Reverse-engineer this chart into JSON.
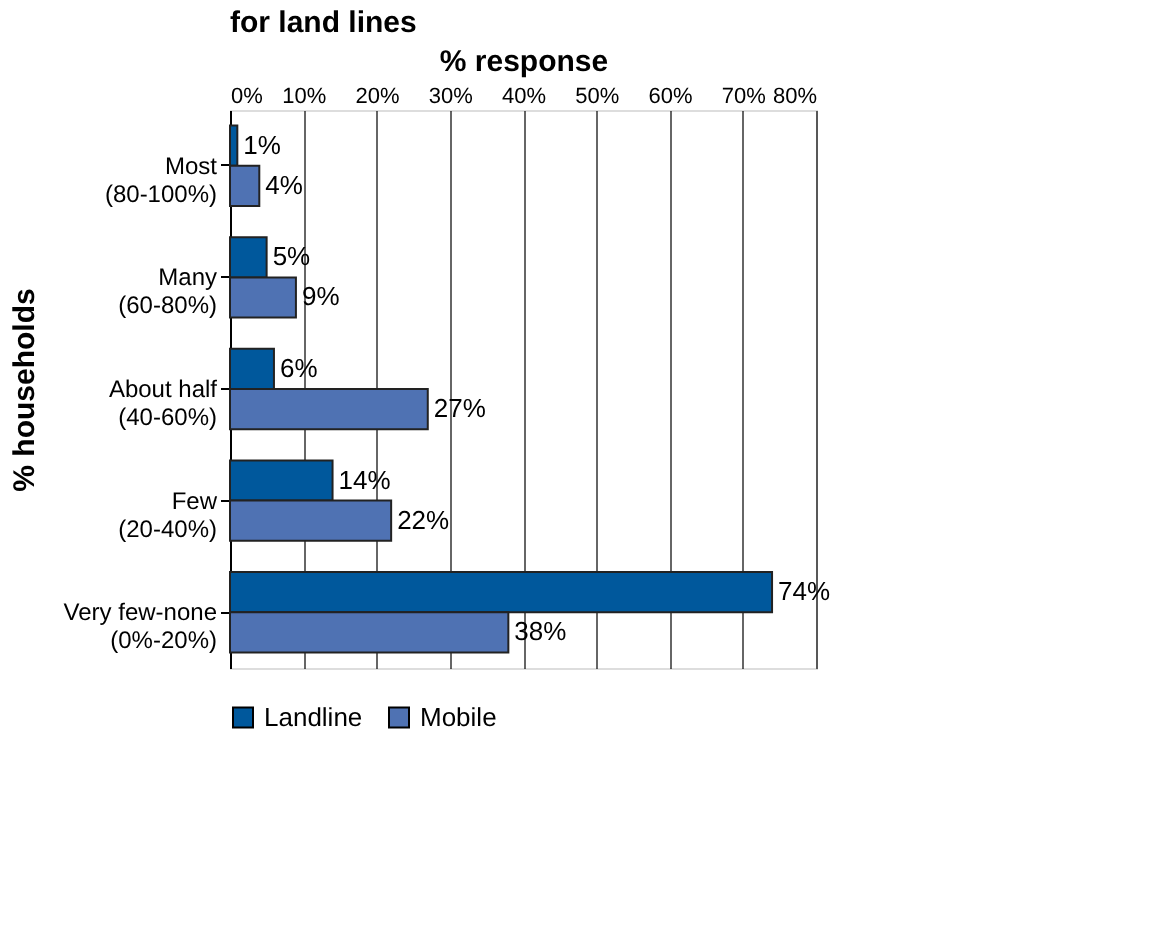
{
  "chart_data": {
    "type": "bar",
    "orientation": "horizontal",
    "title": "for land lines",
    "xlabel": "% response",
    "ylabel": "% households",
    "categories": [
      "Most\n(80-100%)",
      "Many\n(60-80%)",
      "About half\n(40-60%)",
      "Few\n(20-40%)",
      "Very few-none\n(0%-20%)"
    ],
    "series": [
      {
        "name": "Landline",
        "color": "#00589c",
        "values": [
          1,
          5,
          6,
          14,
          74
        ],
        "value_labels": [
          "1%",
          "5%",
          "6%",
          "14%",
          "74%"
        ]
      },
      {
        "name": "Mobile",
        "color": "#4f72b3",
        "values": [
          4,
          9,
          27,
          22,
          38
        ],
        "value_labels": [
          "4%",
          "9%",
          "27%",
          "22%",
          "38%"
        ]
      }
    ],
    "xlim": [
      0,
      80
    ],
    "xticks": [
      {
        "value": 0,
        "label": "0%"
      },
      {
        "value": 10,
        "label": "10%"
      },
      {
        "value": 20,
        "label": "20%"
      },
      {
        "value": 30,
        "label": "30%"
      },
      {
        "value": 40,
        "label": "40%"
      },
      {
        "value": 50,
        "label": "50%"
      },
      {
        "value": 60,
        "label": "60%"
      },
      {
        "value": 70,
        "label": "70%"
      },
      {
        "value": 80,
        "label": "80%"
      }
    ],
    "grid": "x",
    "legend": "bottom"
  }
}
